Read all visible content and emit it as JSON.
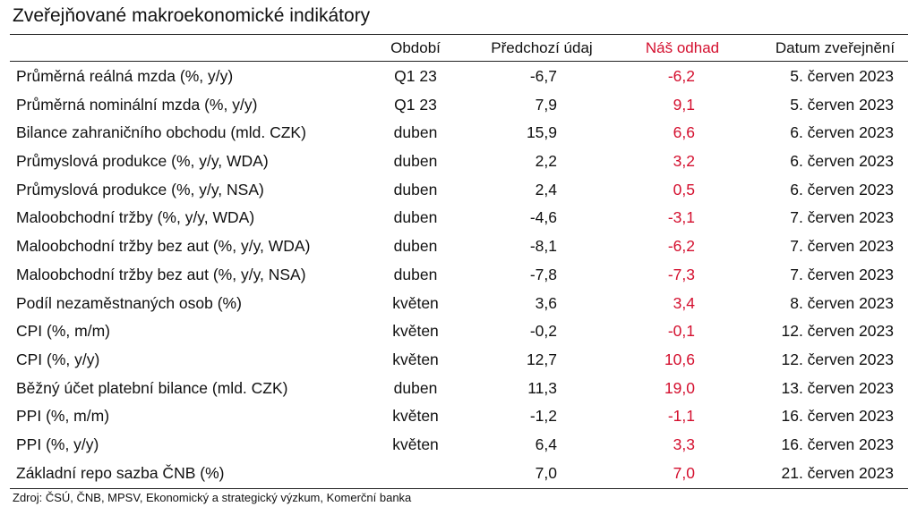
{
  "title": "Zveřejňované makroekonomické indikátory",
  "headers": {
    "period": "Období",
    "previous": "Předchozí údaj",
    "estimate": "Náš odhad",
    "date": "Datum zveřejnění"
  },
  "colors": {
    "estimate": "#d40f2e",
    "text": "#111111",
    "rule": "#222222"
  },
  "rows": [
    {
      "name": "Průměrná reálná mzda (%, y/y)",
      "period": "Q1 23",
      "previous": "-6,7",
      "estimate": "-6,2",
      "date": "5. červen 2023"
    },
    {
      "name": "Průměrná nominální mzda (%, y/y)",
      "period": "Q1 23",
      "previous": "7,9",
      "estimate": "9,1",
      "date": "5. červen 2023"
    },
    {
      "name": "Bilance zahraničního obchodu (mld. CZK)",
      "period": "duben",
      "previous": "15,9",
      "estimate": "6,6",
      "date": "6. červen 2023"
    },
    {
      "name": "Průmyslová produkce (%, y/y, WDA)",
      "period": "duben",
      "previous": "2,2",
      "estimate": "3,2",
      "date": "6. červen 2023"
    },
    {
      "name": "Průmyslová produkce (%, y/y, NSA)",
      "period": "duben",
      "previous": "2,4",
      "estimate": "0,5",
      "date": "6. červen 2023"
    },
    {
      "name": "Maloobchodní tržby (%, y/y, WDA)",
      "period": "duben",
      "previous": "-4,6",
      "estimate": "-3,1",
      "date": "7. červen 2023"
    },
    {
      "name": "Maloobchodní tržby bez aut (%, y/y, WDA)",
      "period": "duben",
      "previous": "-8,1",
      "estimate": "-6,2",
      "date": "7. červen 2023"
    },
    {
      "name": "Maloobchodní tržby bez aut (%, y/y, NSA)",
      "period": "duben",
      "previous": "-7,8",
      "estimate": "-7,3",
      "date": "7. červen 2023"
    },
    {
      "name": "Podíl nezaměstnaných osob (%)",
      "period": "květen",
      "previous": "3,6",
      "estimate": "3,4",
      "date": "8. červen 2023"
    },
    {
      "name": "CPI (%, m/m)",
      "period": "květen",
      "previous": "-0,2",
      "estimate": "-0,1",
      "date": "12. červen 2023"
    },
    {
      "name": "CPI (%, y/y)",
      "period": "květen",
      "previous": "12,7",
      "estimate": "10,6",
      "date": "12. červen 2023"
    },
    {
      "name": "Běžný účet platební bilance (mld. CZK)",
      "period": "duben",
      "previous": "11,3",
      "estimate": "19,0",
      "date": "13. červen 2023"
    },
    {
      "name": "PPI (%, m/m)",
      "period": "květen",
      "previous": "-1,2",
      "estimate": "-1,1",
      "date": "16. červen 2023"
    },
    {
      "name": "PPI (%, y/y)",
      "period": "květen",
      "previous": "6,4",
      "estimate": "3,3",
      "date": "16. červen 2023"
    },
    {
      "name": "Základní repo sazba ČNB (%)",
      "period": "",
      "previous": "7,0",
      "estimate": "7,0",
      "date": "21. červen 2023"
    }
  ],
  "source": "Zdroj: ČSÚ, ČNB, MPSV, Ekonomický a strategický výzkum, Komerční banka"
}
